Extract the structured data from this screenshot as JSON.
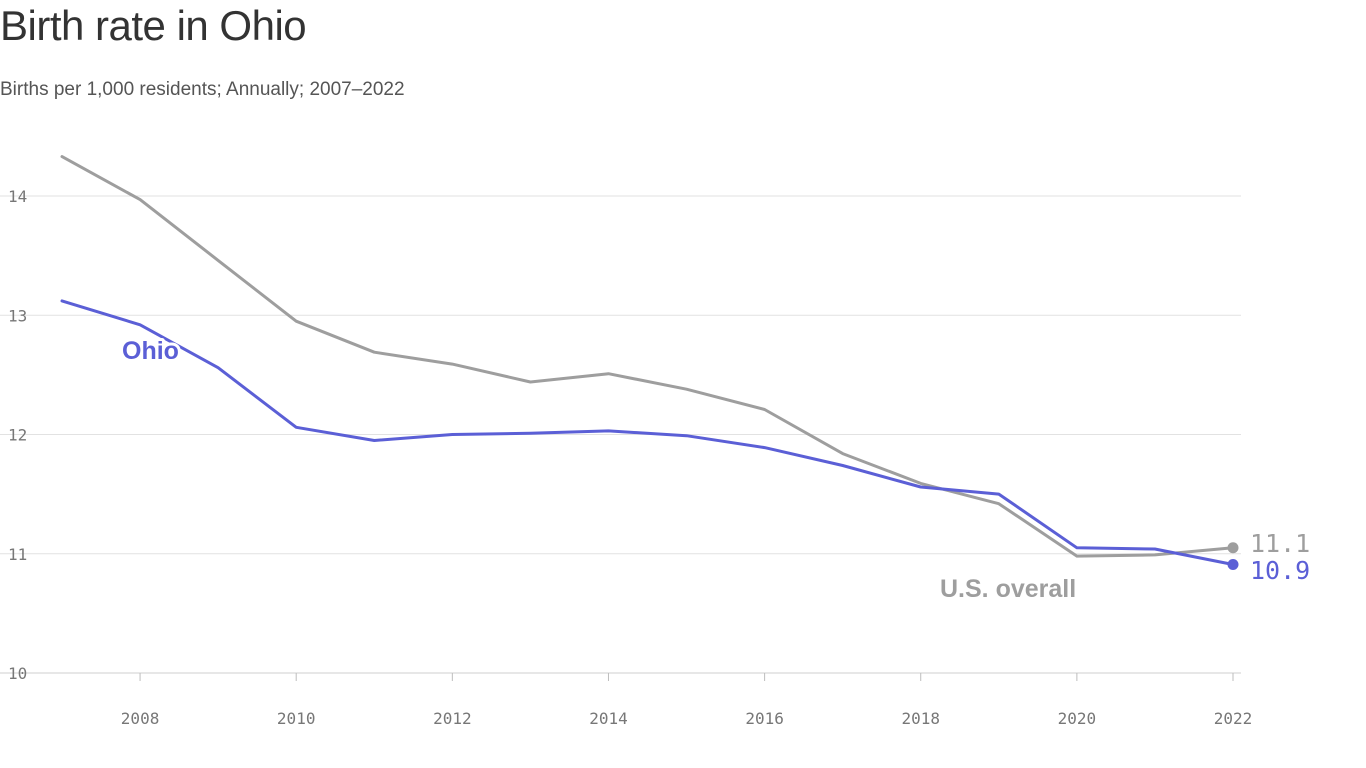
{
  "chart_data": {
    "type": "line",
    "title": "Birth rate in Ohio",
    "subtitle": "Births per 1,000 residents; Annually; 2007–2022",
    "x": [
      2007,
      2008,
      2009,
      2010,
      2011,
      2012,
      2013,
      2014,
      2015,
      2016,
      2017,
      2018,
      2019,
      2020,
      2021,
      2022
    ],
    "x_ticks": [
      "2008",
      "2010",
      "2012",
      "2014",
      "2016",
      "2018",
      "2020",
      "2022"
    ],
    "y_ticks": [
      "10",
      "11",
      "12",
      "13",
      "14"
    ],
    "ylim": [
      10,
      14.5
    ],
    "xlim": [
      2007,
      2022
    ],
    "grid": true,
    "series": [
      {
        "name": "Ohio",
        "color": "#5b5fd6",
        "end_label": "10.9",
        "values": [
          13.12,
          12.92,
          12.56,
          12.06,
          11.95,
          12.0,
          12.01,
          12.03,
          11.99,
          11.89,
          11.74,
          11.56,
          11.5,
          11.05,
          11.04,
          10.91
        ]
      },
      {
        "name": "U.S. overall",
        "color": "#9e9e9e",
        "end_label": "11.1",
        "values": [
          14.33,
          13.97,
          13.46,
          12.95,
          12.69,
          12.59,
          12.44,
          12.51,
          12.38,
          12.21,
          11.84,
          11.59,
          11.42,
          10.98,
          10.99,
          11.05
        ]
      }
    ]
  }
}
